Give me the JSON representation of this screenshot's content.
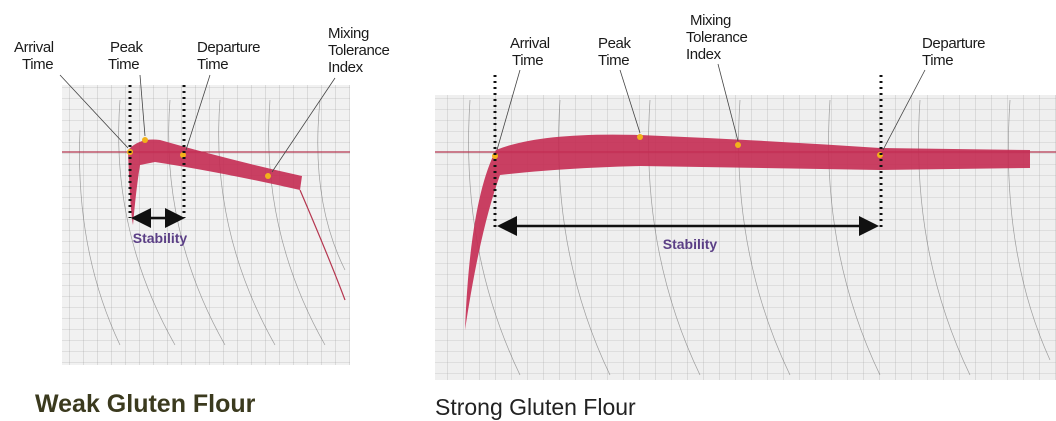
{
  "panels": [
    {
      "labels": [
        {
          "lines": [
            "Arrival",
            "Time"
          ]
        },
        {
          "lines": [
            "Peak",
            "Time"
          ]
        },
        {
          "lines": [
            "Departure",
            "Time"
          ]
        },
        {
          "lines": [
            "Mixing",
            "Tolerance",
            "Index"
          ]
        }
      ],
      "stability": "Stability",
      "caption": "Weak Gluten Flour"
    },
    {
      "labels": [
        {
          "lines": [
            "Arrival",
            "Time"
          ]
        },
        {
          "lines": [
            "Peak",
            "Time"
          ]
        },
        {
          "lines": [
            "Mixing",
            "Tolerance",
            "Index"
          ]
        },
        {
          "lines": [
            "Departure",
            "Time"
          ]
        }
      ],
      "stability": "Stability",
      "caption": "Strong Gluten Flour"
    }
  ]
}
